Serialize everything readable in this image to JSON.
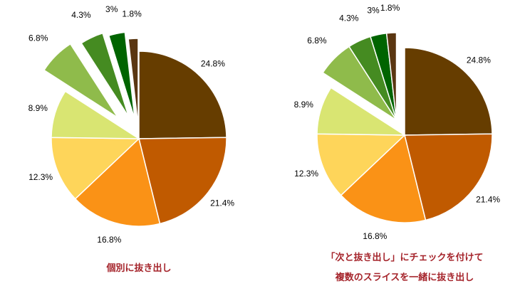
{
  "colors": {
    "caption": "#a5242b",
    "slice_stroke": "#ffffff"
  },
  "chart_data": [
    {
      "type": "pie",
      "caption": [
        "個別に抜き出し"
      ],
      "slices": [
        {
          "label": "24.8%",
          "value": 24.8,
          "color": "#663d00",
          "exploded": false
        },
        {
          "label": "21.4%",
          "value": 21.4,
          "color": "#c05a00",
          "exploded": false
        },
        {
          "label": "16.8%",
          "value": 16.8,
          "color": "#fa9216",
          "exploded": false
        },
        {
          "label": "12.3%",
          "value": 12.3,
          "color": "#fed55a",
          "exploded": false
        },
        {
          "label": "8.9%",
          "value": 8.9,
          "color": "#d9e572",
          "exploded": false
        },
        {
          "label": "6.8%",
          "value": 6.8,
          "color": "#8fbb4b",
          "exploded": true
        },
        {
          "label": "4.3%",
          "value": 4.3,
          "color": "#458b21",
          "exploded": true
        },
        {
          "label": "3%",
          "value": 3.0,
          "color": "#006400",
          "exploded": true
        },
        {
          "label": "1.8%",
          "value": 1.8,
          "color": "#5a3611",
          "exploded": true
        }
      ]
    },
    {
      "type": "pie",
      "caption": [
        "「次と抜き出し」にチェックを付けて",
        "複数のスライスを一緒に抜き出し"
      ],
      "slices": [
        {
          "label": "24.8%",
          "value": 24.8,
          "color": "#663d00",
          "exploded": false
        },
        {
          "label": "21.4%",
          "value": 21.4,
          "color": "#c05a00",
          "exploded": false
        },
        {
          "label": "16.8%",
          "value": 16.8,
          "color": "#fa9216",
          "exploded": false
        },
        {
          "label": "12.3%",
          "value": 12.3,
          "color": "#fed55a",
          "exploded": false
        },
        {
          "label": "8.9%",
          "value": 8.9,
          "color": "#d9e572",
          "exploded": false
        },
        {
          "label": "6.8%",
          "value": 6.8,
          "color": "#8fbb4b",
          "exploded": true
        },
        {
          "label": "4.3%",
          "value": 4.3,
          "color": "#458b21",
          "exploded": true
        },
        {
          "label": "3%",
          "value": 3.0,
          "color": "#006400",
          "exploded": true
        },
        {
          "label": "1.8%",
          "value": 1.8,
          "color": "#5a3611",
          "exploded": true
        }
      ]
    }
  ]
}
